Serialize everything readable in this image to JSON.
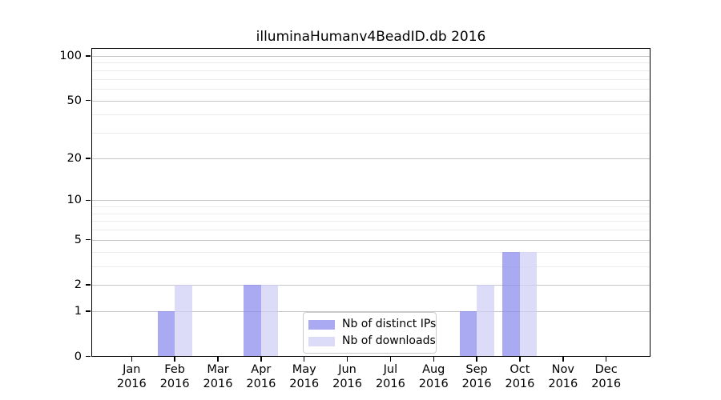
{
  "chart_data": {
    "type": "bar",
    "title": "illuminaHumanv4BeadID.db 2016",
    "categories": [
      "Jan",
      "Feb",
      "Mar",
      "Apr",
      "May",
      "Jun",
      "Jul",
      "Aug",
      "Sep",
      "Oct",
      "Nov",
      "Dec"
    ],
    "category_year": "2016",
    "series": [
      {
        "name": "Nb of distinct IPs",
        "color": "rgba(137,137,238,0.72)",
        "values": [
          0,
          1,
          0,
          2,
          0,
          0,
          0,
          0,
          1,
          4,
          0,
          0
        ]
      },
      {
        "name": "Nb of downloads",
        "color": "rgba(207,207,246,0.72)",
        "values": [
          0,
          2,
          0,
          2,
          0,
          0,
          0,
          0,
          2,
          4,
          0,
          0
        ]
      }
    ],
    "y_axis": {
      "scale": "log1p",
      "range": [
        0,
        100
      ],
      "tick_values": [
        100,
        50,
        20,
        10,
        5,
        2,
        1,
        0
      ],
      "tick_labels": [
        "100",
        "50",
        "20",
        "10",
        "5",
        "2",
        "1",
        "0"
      ],
      "major_gridlines": [
        1,
        2,
        5,
        10,
        20,
        50,
        100
      ],
      "minor_gridlines": [
        3,
        4,
        6,
        7,
        8,
        9,
        30,
        40,
        60,
        70,
        80,
        90
      ]
    },
    "legend": {
      "position": "lower center"
    },
    "colors": {
      "grid_major": "#c6c6c6",
      "grid_minor": "#ebebeb",
      "spine": "#000000",
      "background": "#ffffff"
    }
  }
}
